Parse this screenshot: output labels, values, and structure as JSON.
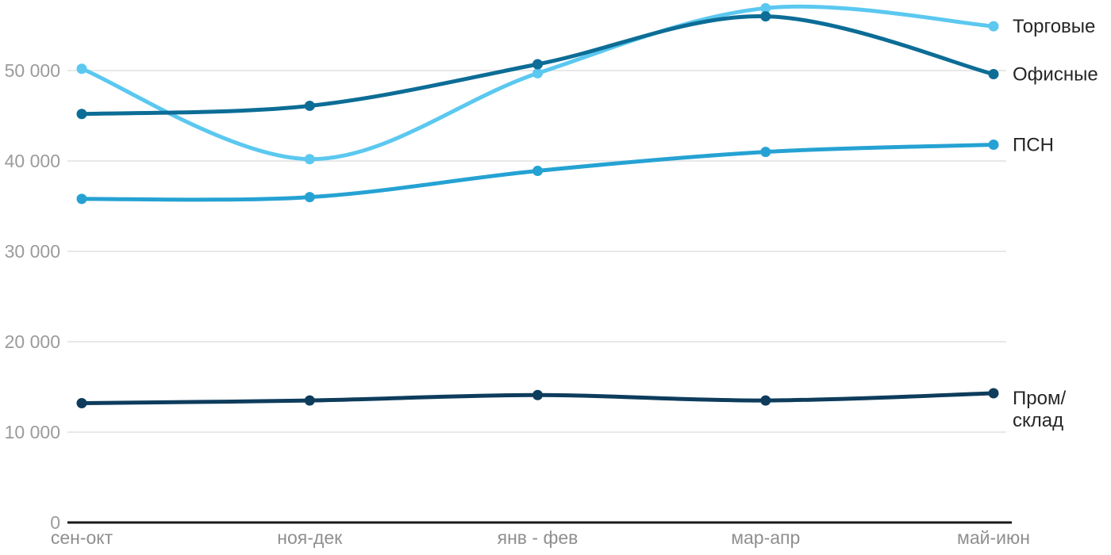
{
  "page": {
    "background": "#ffffff"
  },
  "chart_data": {
    "type": "line",
    "title": "",
    "xlabel": "",
    "ylabel": "",
    "categories": [
      "сен-окт",
      "ноя-дек",
      "янв - фев",
      "мар-апр",
      "май-июн"
    ],
    "series": [
      {
        "name": "Торговые",
        "color": "#5BC8F0",
        "values": [
          50200,
          40200,
          49700,
          56900,
          54900
        ],
        "label_lines": [
          "Торговые"
        ]
      },
      {
        "name": "Офисные",
        "color": "#0C6D96",
        "values": [
          45200,
          46100,
          50700,
          56000,
          49600
        ],
        "label_lines": [
          "Офисные"
        ]
      },
      {
        "name": "ПСН",
        "color": "#25A2D3",
        "values": [
          35800,
          36000,
          38900,
          41000,
          41800
        ],
        "label_lines": [
          "ПСН"
        ]
      },
      {
        "name": "Пром/склад",
        "color": "#0E3C5C",
        "values": [
          13200,
          13500,
          14100,
          13500,
          14300
        ],
        "label_lines": [
          "Пром/",
          "склад"
        ]
      }
    ],
    "y_ticks": [
      {
        "value": 0,
        "label": "0"
      },
      {
        "value": 10000,
        "label": "10 000"
      },
      {
        "value": 20000,
        "label": "20 000"
      },
      {
        "value": 30000,
        "label": "30 000"
      },
      {
        "value": 40000,
        "label": "40 000"
      },
      {
        "value": 50000,
        "label": "50 000"
      }
    ],
    "ylim": [
      0,
      57500
    ],
    "grid": true,
    "legend_position": "right-inline",
    "colors": {
      "axis": "#1a1a1a",
      "grid": "#e8e8e8",
      "y_tick_label": "#9b9b9b",
      "x_tick_label": "#8f8f8f",
      "series_label": "#262626"
    }
  }
}
